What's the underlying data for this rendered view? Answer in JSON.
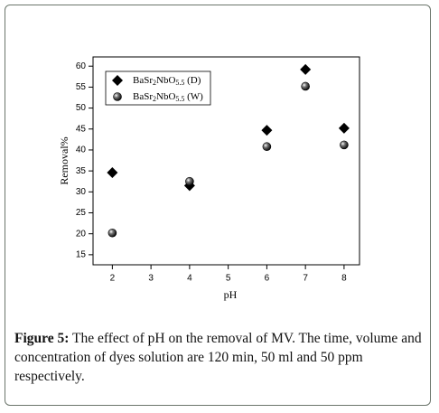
{
  "chart_data": {
    "type": "scatter",
    "xlabel": "pH",
    "ylabel": "Removal%",
    "xlim": [
      1.5,
      8.4
    ],
    "ylim": [
      12.6,
      62.2
    ],
    "xticks": [
      2,
      3,
      4,
      5,
      6,
      7,
      8
    ],
    "yticks": [
      15,
      20,
      25,
      30,
      35,
      40,
      45,
      50,
      55,
      60
    ],
    "legend": "upper left",
    "series": [
      {
        "name": "BaSr2NbO5.5 (D)",
        "marker": "diamond",
        "color": "#000000",
        "x": [
          2,
          4,
          6,
          7,
          8
        ],
        "values": [
          34.6,
          31.5,
          44.7,
          59.2,
          45.2
        ]
      },
      {
        "name": "BaSr2NbO5.5 (W)",
        "marker": "sphere",
        "color": "#000000",
        "x": [
          2,
          4,
          6,
          7,
          8
        ],
        "values": [
          20.2,
          32.5,
          40.8,
          55.2,
          41.2
        ]
      }
    ]
  },
  "caption": {
    "label": "Figure 5:",
    "text": "The effect of pH on the removal of MV.  The time, volume and concentration of dyes solution are 120 min, 50 ml and 50 ppm respectively."
  }
}
